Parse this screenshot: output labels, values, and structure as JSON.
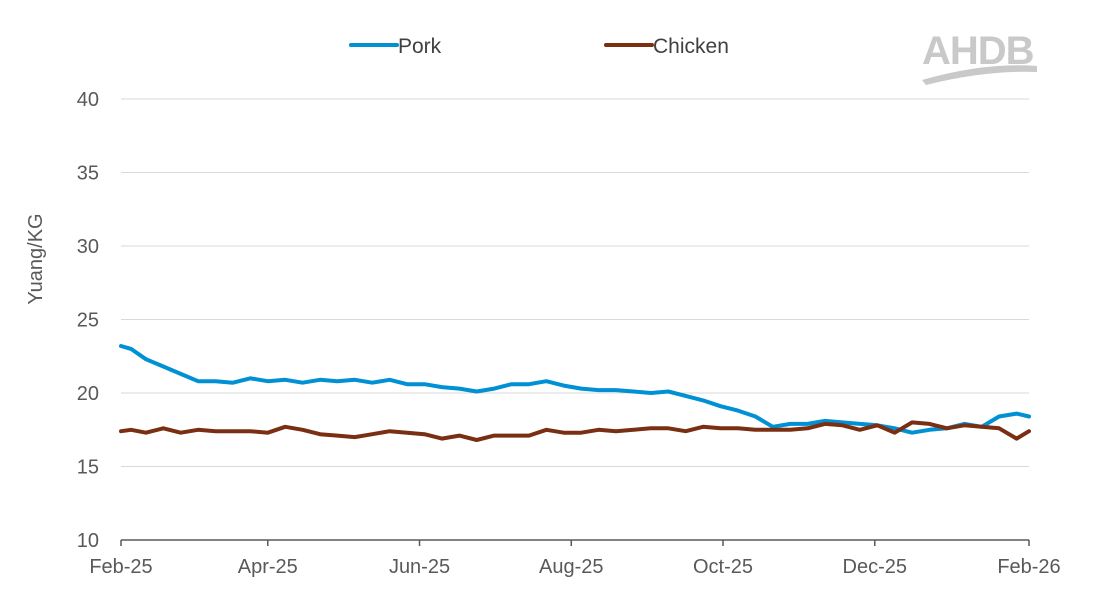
{
  "logo": {
    "text": "AHDB",
    "color": "#c9c9c9"
  },
  "chart_data": {
    "type": "line",
    "title": "",
    "xlabel": "",
    "ylabel": "Yuang/KG",
    "ylim": [
      10,
      40
    ],
    "yticks": [
      10,
      15,
      20,
      25,
      30,
      35,
      40
    ],
    "xrange": [
      "2025-02-01",
      "2026-02-01"
    ],
    "xticks": [
      "Feb-25",
      "Apr-25",
      "Jun-25",
      "Aug-25",
      "Oct-25",
      "Dec-25",
      "Feb-26"
    ],
    "xtick_dates": [
      "2025-02-01",
      "2025-04-01",
      "2025-06-01",
      "2025-08-01",
      "2025-10-01",
      "2025-12-01",
      "2026-02-01"
    ],
    "grid": "horizontal",
    "legend": "top-center",
    "series": [
      {
        "name": "Pork",
        "color": "#0090d4",
        "x": [
          "2025-02-01",
          "2025-02-05",
          "2025-02-11",
          "2025-02-18",
          "2025-02-25",
          "2025-03-04",
          "2025-03-11",
          "2025-03-18",
          "2025-03-25",
          "2025-04-01",
          "2025-04-08",
          "2025-04-15",
          "2025-04-22",
          "2025-04-29",
          "2025-05-06",
          "2025-05-13",
          "2025-05-20",
          "2025-05-27",
          "2025-06-03",
          "2025-06-10",
          "2025-06-17",
          "2025-06-24",
          "2025-07-01",
          "2025-07-08",
          "2025-07-15",
          "2025-07-22",
          "2025-07-29",
          "2025-08-05",
          "2025-08-12",
          "2025-08-19",
          "2025-08-26",
          "2025-09-02",
          "2025-09-09",
          "2025-09-16",
          "2025-09-23",
          "2025-09-30",
          "2025-10-07",
          "2025-10-14",
          "2025-10-21",
          "2025-10-28",
          "2025-11-04",
          "2025-11-11",
          "2025-11-18",
          "2025-11-25",
          "2025-12-02",
          "2025-12-09",
          "2025-12-16",
          "2025-12-23",
          "2025-12-30",
          "2026-01-06",
          "2026-01-13",
          "2026-01-20",
          "2026-01-27",
          "2026-02-01"
        ],
        "y": [
          23.2,
          23.0,
          22.3,
          21.8,
          21.3,
          20.8,
          20.8,
          20.7,
          21.0,
          20.8,
          20.9,
          20.7,
          20.9,
          20.8,
          20.9,
          20.7,
          20.9,
          20.6,
          20.6,
          20.4,
          20.3,
          20.1,
          20.3,
          20.6,
          20.6,
          20.8,
          20.5,
          20.3,
          20.2,
          20.2,
          20.1,
          20.0,
          20.1,
          19.8,
          19.5,
          19.1,
          18.8,
          18.4,
          17.7,
          17.9,
          17.9,
          18.1,
          18.0,
          17.9,
          17.8,
          17.6,
          17.3,
          17.5,
          17.6,
          17.9,
          17.7,
          18.4,
          18.6,
          18.4
        ]
      },
      {
        "name": "Chicken",
        "color": "#7a2e12",
        "x": [
          "2025-02-01",
          "2025-02-05",
          "2025-02-11",
          "2025-02-18",
          "2025-02-25",
          "2025-03-04",
          "2025-03-11",
          "2025-03-18",
          "2025-03-25",
          "2025-04-01",
          "2025-04-08",
          "2025-04-15",
          "2025-04-22",
          "2025-04-29",
          "2025-05-06",
          "2025-05-13",
          "2025-05-20",
          "2025-05-27",
          "2025-06-03",
          "2025-06-10",
          "2025-06-17",
          "2025-06-24",
          "2025-07-01",
          "2025-07-08",
          "2025-07-15",
          "2025-07-22",
          "2025-07-29",
          "2025-08-05",
          "2025-08-12",
          "2025-08-19",
          "2025-08-26",
          "2025-09-02",
          "2025-09-09",
          "2025-09-16",
          "2025-09-23",
          "2025-09-30",
          "2025-10-07",
          "2025-10-14",
          "2025-10-21",
          "2025-10-28",
          "2025-11-04",
          "2025-11-11",
          "2025-11-18",
          "2025-11-25",
          "2025-12-02",
          "2025-12-09",
          "2025-12-16",
          "2025-12-23",
          "2025-12-30",
          "2026-01-06",
          "2026-01-13",
          "2026-01-20",
          "2026-01-27",
          "2026-02-01"
        ],
        "y": [
          17.4,
          17.5,
          17.3,
          17.6,
          17.3,
          17.5,
          17.4,
          17.4,
          17.4,
          17.3,
          17.7,
          17.5,
          17.2,
          17.1,
          17.0,
          17.2,
          17.4,
          17.3,
          17.2,
          16.9,
          17.1,
          16.8,
          17.1,
          17.1,
          17.1,
          17.5,
          17.3,
          17.3,
          17.5,
          17.4,
          17.5,
          17.6,
          17.6,
          17.4,
          17.7,
          17.6,
          17.6,
          17.5,
          17.5,
          17.5,
          17.6,
          17.9,
          17.8,
          17.5,
          17.8,
          17.3,
          18.0,
          17.9,
          17.6,
          17.8,
          17.7,
          17.6,
          16.9,
          17.4
        ]
      }
    ]
  }
}
